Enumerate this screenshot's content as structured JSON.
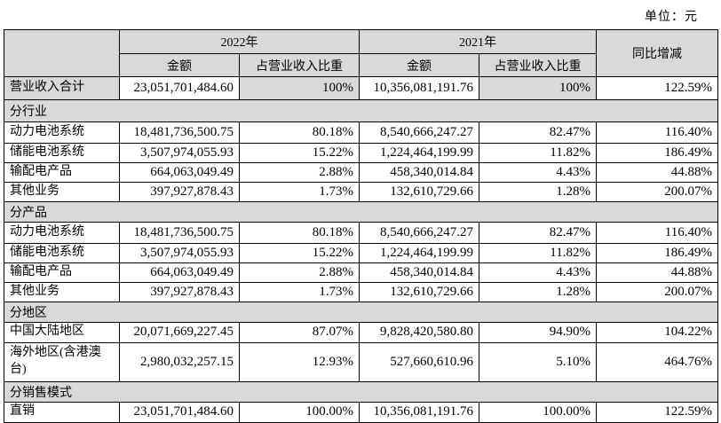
{
  "unit_label": "单位：元",
  "table": {
    "header": {
      "corner": "",
      "col_2022": "2022年",
      "col_2021": "2021年",
      "yoy": "同比增减",
      "amount_2022": "金额",
      "ratio_2022": "占营业收入比重",
      "amount_2021": "金额",
      "ratio_2021": "占营业收入比重"
    },
    "rows": [
      {
        "type": "total",
        "label": "营业收入合计",
        "cells": [
          "23,051,701,484.60",
          "100%",
          "10,356,081,191.76",
          "100%",
          "122.59%"
        ]
      },
      {
        "type": "section",
        "label": "分行业"
      },
      {
        "type": "data",
        "label": "动力电池系统",
        "cells": [
          "18,481,736,500.75",
          "80.18%",
          "8,540,666,247.27",
          "82.47%",
          "116.40%"
        ]
      },
      {
        "type": "data",
        "label": "储能电池系统",
        "cells": [
          "3,507,974,055.93",
          "15.22%",
          "1,224,464,199.99",
          "11.82%",
          "186.49%"
        ]
      },
      {
        "type": "data",
        "label": "输配电产品",
        "cells": [
          "664,063,049.49",
          "2.88%",
          "458,340,014.84",
          "4.43%",
          "44.88%"
        ]
      },
      {
        "type": "data",
        "label": "其他业务",
        "cells": [
          "397,927,878.43",
          "1.73%",
          "132,610,729.66",
          "1.28%",
          "200.07%"
        ]
      },
      {
        "type": "section",
        "label": "分产品"
      },
      {
        "type": "data",
        "label": "动力电池系统",
        "cells": [
          "18,481,736,500.75",
          "80.18%",
          "8,540,666,247.27",
          "82.47%",
          "116.40%"
        ]
      },
      {
        "type": "data",
        "label": "储能电池系统",
        "cells": [
          "3,507,974,055.93",
          "15.22%",
          "1,224,464,199.99",
          "11.82%",
          "186.49%"
        ]
      },
      {
        "type": "data",
        "label": "输配电产品",
        "cells": [
          "664,063,049.49",
          "2.88%",
          "458,340,014.84",
          "4.43%",
          "44.88%"
        ]
      },
      {
        "type": "data",
        "label": "其他业务",
        "cells": [
          "397,927,878.43",
          "1.73%",
          "132,610,729.66",
          "1.28%",
          "200.07%"
        ]
      },
      {
        "type": "section",
        "label": "分地区"
      },
      {
        "type": "data",
        "label": "中国大陆地区",
        "cells": [
          "20,071,669,227.45",
          "87.07%",
          "9,828,420,580.80",
          "94.90%",
          "104.22%"
        ]
      },
      {
        "type": "data",
        "label": "海外地区(含港澳台)",
        "cells": [
          "2,980,032,257.15",
          "12.93%",
          "527,660,610.96",
          "5.10%",
          "464.76%"
        ]
      },
      {
        "type": "section",
        "label": "分销售模式"
      },
      {
        "type": "data",
        "label": "直销",
        "cells": [
          "23,051,701,484.60",
          "100.00%",
          "10,356,081,191.76",
          "100.00%",
          "122.59%"
        ]
      }
    ]
  },
  "colors": {
    "header_bg": "#d9d9d9",
    "section_bg": "#d9d9d9",
    "border": "#000000",
    "page_bg": "#ffffff"
  }
}
